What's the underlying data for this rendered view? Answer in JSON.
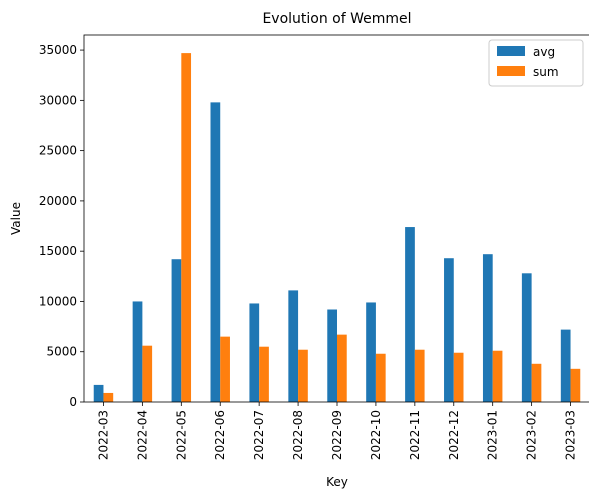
{
  "chart_data": {
    "type": "bar",
    "title": "Evolution of Wemmel",
    "xlabel": "Key",
    "ylabel": "Value",
    "categories": [
      "2022-03",
      "2022-04",
      "2022-05",
      "2022-06",
      "2022-07",
      "2022-08",
      "2022-09",
      "2022-10",
      "2022-11",
      "2022-12",
      "2023-01",
      "2023-02",
      "2023-03"
    ],
    "series": [
      {
        "name": "avg",
        "color": "#1f77b4",
        "values": [
          1700,
          10000,
          14200,
          29800,
          9800,
          11100,
          9200,
          9900,
          17400,
          14300,
          14700,
          12800,
          7200
        ]
      },
      {
        "name": "sum",
        "color": "#ff7f0e",
        "values": [
          900,
          5600,
          34700,
          6500,
          5500,
          5200,
          6700,
          4800,
          5200,
          4900,
          5100,
          3800,
          3300
        ]
      }
    ],
    "ylim": [
      0,
      36500
    ],
    "yticks": [
      0,
      5000,
      10000,
      15000,
      20000,
      25000,
      30000,
      35000
    ],
    "grid": false,
    "legend_position": "top-right"
  }
}
